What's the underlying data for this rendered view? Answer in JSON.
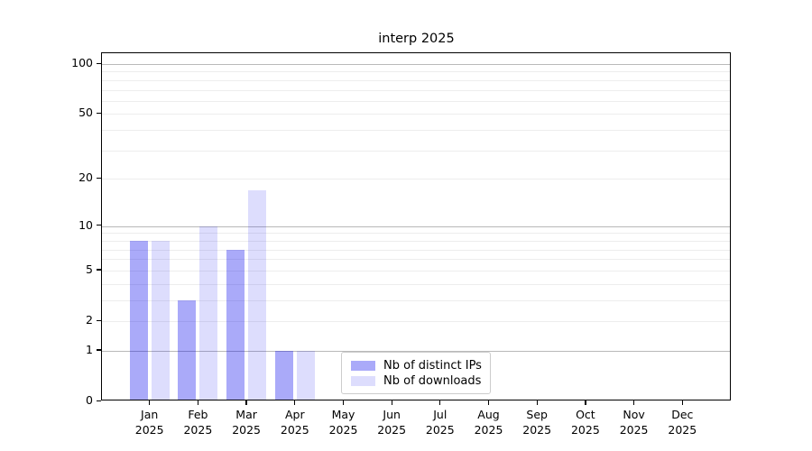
{
  "chart_data": {
    "type": "bar",
    "title": "interp 2025",
    "categories": [
      "Jan",
      "Feb",
      "Mar",
      "Apr",
      "May",
      "Jun",
      "Jul",
      "Aug",
      "Sep",
      "Oct",
      "Nov",
      "Dec"
    ],
    "x_year_label": "2025",
    "series": [
      {
        "name": "Nb of distinct IPs",
        "color": "rgba(0,0,238,0.335)",
        "values": [
          8,
          3,
          7,
          1,
          0,
          0,
          0,
          0,
          0,
          0,
          0,
          0
        ]
      },
      {
        "name": "Nb of downloads",
        "color": "rgba(0,0,238,0.135)",
        "values": [
          8,
          10,
          17,
          1,
          0,
          0,
          0,
          0,
          0,
          0,
          0,
          0
        ]
      }
    ],
    "y_axis": {
      "scale": "log10(1+v)",
      "ticks": [
        0,
        1,
        2,
        5,
        10,
        20,
        50,
        100
      ],
      "major_gridlines": [
        1,
        10,
        100
      ],
      "minor_gridlines": [
        2,
        3,
        4,
        5,
        6,
        7,
        8,
        9,
        20,
        30,
        40,
        50,
        60,
        70,
        80,
        90
      ],
      "ylim": [
        0,
        100
      ]
    },
    "legend": {
      "location": "lower center",
      "entries": [
        "Nb of distinct IPs",
        "Nb of downloads"
      ]
    },
    "grid": true
  },
  "colors": {
    "grid_major": "#b9b9b9",
    "grid_minor": "#ededed",
    "spine": "#000000",
    "text": "#000000",
    "legend_border": "#cccccc"
  }
}
